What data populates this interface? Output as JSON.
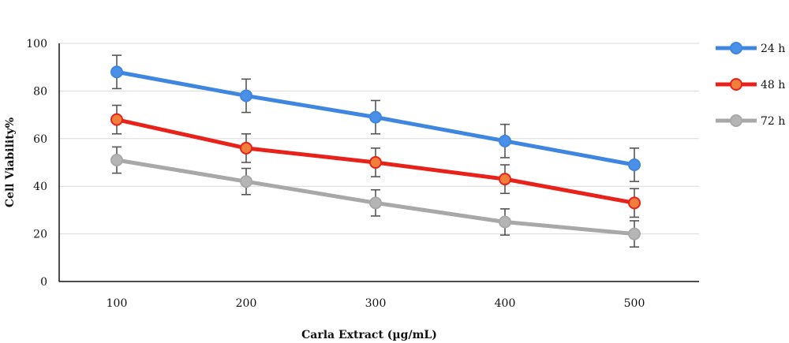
{
  "chart_data": {
    "type": "line",
    "title": "",
    "xlabel": "Carla Extract (µg/mL)",
    "ylabel": "Cell Viability%",
    "categories": [
      "100",
      "200",
      "300",
      "400",
      "500"
    ],
    "ylim": [
      0,
      100
    ],
    "yticks": [
      "0",
      "20",
      "40",
      "60",
      "80",
      "100"
    ],
    "grid": true,
    "legend_position": "right",
    "series": [
      {
        "name": "24 h",
        "color": "#3f86e0",
        "marker_fill": "#4a90e8",
        "marker_edge": "#3f86e0",
        "values": [
          88,
          78,
          69,
          59,
          49
        ],
        "errors": [
          7,
          7,
          7,
          7,
          7
        ]
      },
      {
        "name": "48 h",
        "color": "#e8211b",
        "marker_fill": "#f07f3c",
        "marker_edge": "#e8211b",
        "values": [
          68,
          56,
          50,
          43,
          33
        ],
        "errors": [
          6,
          6,
          6,
          6,
          6
        ]
      },
      {
        "name": "72 h",
        "color": "#a8a8a8",
        "marker_fill": "#b5b5b5",
        "marker_edge": "#a8a8a8",
        "values": [
          51,
          42,
          33,
          25,
          20
        ],
        "errors": [
          5.5,
          5.5,
          5.5,
          5.5,
          5.5
        ]
      }
    ]
  }
}
